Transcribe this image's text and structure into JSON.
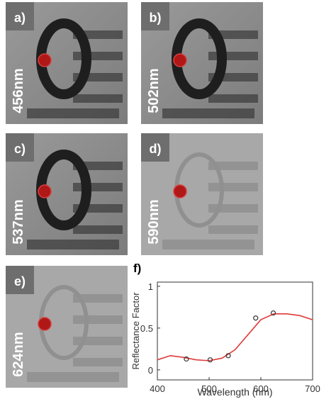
{
  "panels": [
    {
      "label": "a)",
      "wavelength": "456nm"
    },
    {
      "label": "b)",
      "wavelength": "502nm"
    },
    {
      "label": "c)",
      "wavelength": "537nm"
    },
    {
      "label": "d)",
      "wavelength": "590nm"
    },
    {
      "label": "e)",
      "wavelength": "624nm"
    }
  ],
  "chart_data": {
    "type": "line",
    "panel_label": "f)",
    "x_label": "Wavelength (nm)",
    "y_label": "Reflectance Factor",
    "xlim": [
      400,
      700
    ],
    "xticks": [
      400,
      500,
      600,
      700
    ],
    "ylim": [
      -0.12,
      1.05
    ],
    "yticks": [
      0,
      0.5,
      1
    ],
    "series": [
      {
        "type": "line",
        "color": "#e03a3a",
        "x": [
          400,
          425,
          450,
          475,
          500,
          525,
          550,
          575,
          600,
          625,
          650,
          675,
          700
        ],
        "values": [
          0.12,
          0.17,
          0.15,
          0.12,
          0.11,
          0.14,
          0.24,
          0.42,
          0.6,
          0.67,
          0.67,
          0.65,
          0.6
        ]
      },
      {
        "type": "scatter",
        "color": "#333333",
        "x": [
          456,
          502,
          537,
          590,
          624
        ],
        "values": [
          0.13,
          0.12,
          0.17,
          0.62,
          0.68
        ]
      }
    ]
  }
}
